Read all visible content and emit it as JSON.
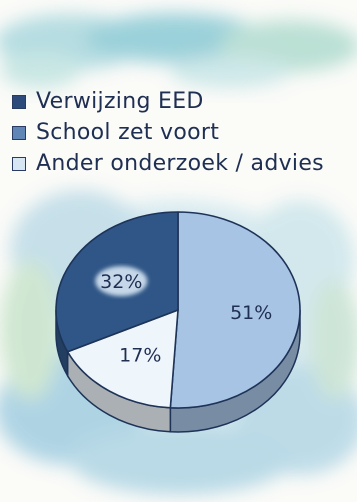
{
  "chart_data": {
    "type": "pie",
    "title": "",
    "legend_placement": "top",
    "categories": [
      "Verwijzing EED",
      "School zet voort",
      "Ander onderzoek / advies"
    ],
    "values": [
      32,
      51,
      17
    ],
    "labels": [
      "32%",
      "51%",
      "17%"
    ],
    "colors": [
      "#2f5686",
      "#a7c4e4",
      "#eef5fb"
    ],
    "swatch_colors": [
      "#2c4b7a",
      "#5f86b5",
      "#d6e6f3"
    ]
  }
}
